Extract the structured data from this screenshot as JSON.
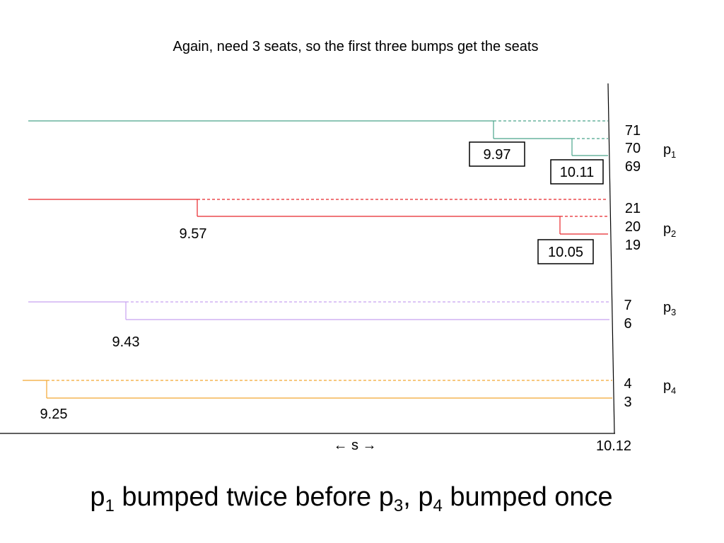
{
  "title": "Again, need 3 seats, so the first three bumps get the seats",
  "caption": {
    "p1": "p",
    "s1": "1",
    "t1": " bumped twice before ",
    "p3": "p",
    "s3": "3",
    "t2": ", ",
    "p4": "p",
    "s4": "4",
    "t3": " bumped once"
  },
  "axis": {
    "arrow_label": "← s →",
    "end_label": "10.12"
  },
  "colors": {
    "p1": "#4aa58b",
    "p2": "#e8262a",
    "p3": "#c8a2f0",
    "p4": "#f2a630",
    "axis": "#000000"
  },
  "parties": [
    {
      "name": "p",
      "sub": "1",
      "color_key": "p1",
      "seat_labels": [
        "71",
        "70",
        "69"
      ],
      "bumps": [
        {
          "value": "9.97",
          "boxed": true
        },
        {
          "value": "10.11",
          "boxed": true
        }
      ]
    },
    {
      "name": "p",
      "sub": "2",
      "color_key": "p2",
      "seat_labels": [
        "21",
        "20",
        "19"
      ],
      "bumps": [
        {
          "value": "9.57",
          "boxed": false
        },
        {
          "value": "10.05",
          "boxed": true
        }
      ]
    },
    {
      "name": "p",
      "sub": "3",
      "color_key": "p3",
      "seat_labels": [
        "7",
        "6"
      ],
      "bumps": [
        {
          "value": "9.43",
          "boxed": false
        }
      ]
    },
    {
      "name": "p",
      "sub": "4",
      "color_key": "p4",
      "seat_labels": [
        "4",
        "3"
      ],
      "bumps": [
        {
          "value": "9.25",
          "boxed": false
        }
      ]
    }
  ]
}
